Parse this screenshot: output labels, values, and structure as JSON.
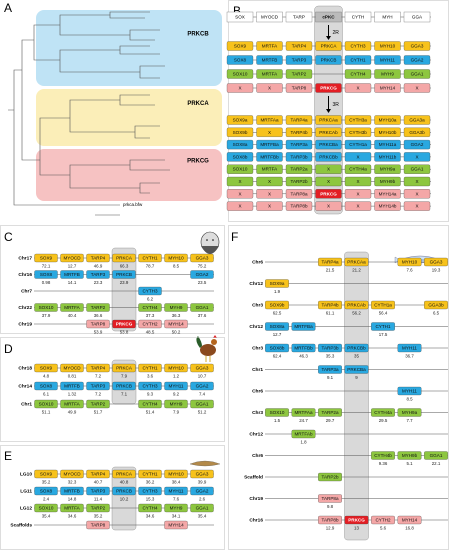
{
  "panels": {
    "A": {
      "letter": "A",
      "groups": [
        {
          "name": "PRKCB",
          "color": "#bfe3f5"
        },
        {
          "name": "PRKCA",
          "color": "#fbeeb8"
        },
        {
          "name": "PRKCG",
          "color": "#f6c2c2"
        }
      ],
      "outgroup": "prkca.bfw"
    },
    "B": {
      "letter": "B",
      "header": [
        "SOX",
        "MYOCD",
        "TARP",
        "cPKC",
        "CYTH",
        "MYH",
        "GGA"
      ],
      "arrows": [
        "2R",
        "3R"
      ],
      "rows2R": [
        {
          "color": "#f7c21b",
          "genes": [
            "SOX9",
            "MRTFA",
            "TARP4",
            "PRKCA",
            "CYTH3",
            "MYH10",
            "GGA3"
          ]
        },
        {
          "color": "#29a8e0",
          "genes": [
            "SOX8",
            "MRTFB",
            "TARP3",
            "PRKCB",
            "CYTH1",
            "MYH11",
            "GGA2"
          ]
        },
        {
          "color": "#8dc63f",
          "genes": [
            "SOX10",
            "MRTFA",
            "TARP2",
            null,
            "CYTH4",
            "MYH9",
            "GGA1"
          ]
        },
        {
          "color": "#f4a7a7",
          "genes": [
            "X",
            "X",
            "TARP8",
            {
              "name": "PRKCG",
              "color": "#e31e24"
            },
            "X",
            "MYH14",
            "X"
          ]
        }
      ],
      "rows3R": [
        {
          "color": "#f7c21b",
          "genes": [
            "SOX9a",
            "MRTFAa",
            "TARP4a",
            "PRKCAa",
            "CYTH3a",
            "MYH10a",
            "GGA3a"
          ]
        },
        {
          "color": "#f7c21b",
          "genes": [
            "SOX9b",
            "X",
            "TARP4b",
            "PRKCAb",
            "CYTH3b",
            "MYH10b",
            "GGA3b"
          ]
        },
        {
          "color": "#29a8e0",
          "genes": [
            "SOX8a",
            "MRTFBa",
            "TARP3a",
            "PRKCBa",
            "CYTH1a",
            "MYH11a",
            "GGA2"
          ]
        },
        {
          "color": "#29a8e0",
          "genes": [
            "SOX8b",
            "MRTFBb",
            "TARP3b",
            "PRKCBb",
            "X",
            "MYH11b",
            "X"
          ]
        },
        {
          "color": "#8dc63f",
          "genes": [
            "SOX10",
            "MRTFA",
            "TARP2a",
            "X",
            "CYTH4a",
            "MYH9a",
            "GGA1"
          ]
        },
        {
          "color": "#8dc63f",
          "genes": [
            "X",
            "X",
            "TARP2b",
            "X",
            "X",
            "MYH9b",
            "X"
          ]
        },
        {
          "color": "#f4a7a7",
          "genes": [
            "X",
            "X",
            "TARP8a",
            {
              "name": "PRKCG",
              "color": "#e31e24"
            },
            "X",
            "MYH14a",
            "X"
          ]
        },
        {
          "color": "#f4a7a7",
          "genes": [
            "X",
            "X",
            "TARP8b",
            "X",
            "X",
            "MYH14b",
            "X"
          ]
        }
      ]
    },
    "C": {
      "letter": "C",
      "rows": [
        {
          "label": "Chr17",
          "color": "#f7c21b",
          "genes": [
            "SOX9",
            "MYOCD",
            "TARP4",
            "PRKCA",
            "CYTH1",
            "MYH10",
            "GGA3"
          ],
          "positions": [
            72.1,
            12.7,
            46.9,
            66.3,
            78.7,
            8.5,
            75.2
          ]
        },
        {
          "label": "Chr16",
          "color": "#29a8e0",
          "genes": [
            "SOX8",
            "MRTFB",
            "TARP3",
            "PRKCB",
            null,
            null,
            "GGA2"
          ],
          "positions": [
            0.98,
            14.1,
            23.3,
            23.9,
            null,
            null,
            23.5
          ]
        },
        {
          "label": "Chr7",
          "color": "#29a8e0",
          "genes": [
            null,
            null,
            null,
            null,
            "CYTH3",
            null,
            null
          ],
          "positions": [
            null,
            null,
            null,
            null,
            6.2,
            null,
            null
          ]
        },
        {
          "label": "Chr22",
          "color": "#8dc63f",
          "genes": [
            "SOX10",
            "MRTFA",
            "TARP2",
            null,
            "CYTH4",
            "MYH9",
            "GGA1"
          ],
          "positions": [
            37.9,
            40.4,
            36.6,
            null,
            37.3,
            36.3,
            37.6
          ]
        },
        {
          "label": "Chr19",
          "color": "#f4a7a7",
          "genes": [
            null,
            null,
            "TARP8",
            {
              "name": "PRKCG",
              "color": "#e31e24"
            },
            "CYTH2",
            "MYH14",
            null
          ],
          "positions": [
            null,
            null,
            53.9,
            53.8,
            48.5,
            50.2,
            null
          ]
        }
      ]
    },
    "D": {
      "letter": "D",
      "rows": [
        {
          "label": "Chr18",
          "color": "#f7c21b",
          "genes": [
            "SOX9",
            "MYOCD",
            "TARP4",
            "PRKCA",
            "CYTH1",
            "MYH10",
            "GGA3"
          ],
          "positions": [
            4.8,
            0.81,
            7.2,
            7.9,
            3.6,
            1.2,
            10.7
          ]
        },
        {
          "label": "Chr14",
          "color": "#29a8e0",
          "genes": [
            "SOX8",
            "MRTFB",
            "TARP3",
            "PRKCB",
            "CYTH3",
            "MYH11",
            "GGA2"
          ],
          "positions": [
            6.1,
            1.32,
            7.2,
            7.1,
            9.3,
            9.2,
            7.4
          ]
        },
        {
          "label": "Chr1",
          "color": "#8dc63f",
          "genes": [
            "SOX10",
            "MRTFA",
            "TARP2",
            null,
            "CYTH4",
            "MYH9",
            "GGA1"
          ],
          "positions": [
            51.1,
            49.9,
            51.7,
            null,
            51.4,
            7.9,
            51.2
          ]
        }
      ]
    },
    "E": {
      "letter": "E",
      "rows": [
        {
          "label": "LG10",
          "color": "#f7c21b",
          "genes": [
            "SOX9",
            "MYOCD",
            "TARP4",
            "PRKCA",
            "CYTH1",
            "MYH10",
            "GGA3"
          ],
          "positions": [
            35.2,
            32.3,
            40.7,
            40.8,
            36.2,
            38.4,
            39.9
          ]
        },
        {
          "label": "LG11",
          "color": "#29a8e0",
          "genes": [
            "SOX8",
            "MRTFB",
            "TARP3",
            "PRKCB",
            "CYTH3",
            "MYH11",
            "GGA2"
          ],
          "positions": [
            2.4,
            14.8,
            11.4,
            10.2,
            15.3,
            7.6,
            2.6
          ]
        },
        {
          "label": "LG12",
          "color": "#8dc63f",
          "genes": [
            "SOX10",
            "MRTFA",
            "TARP2",
            null,
            "CYTH4",
            "MYH9",
            "GGA1"
          ],
          "positions": [
            35.4,
            34.6,
            35.2,
            null,
            34.6,
            34.1,
            35.4
          ]
        },
        {
          "label": "Scaffolds",
          "color": "#f4a7a7",
          "genes": [
            null,
            null,
            "TARP8",
            null,
            null,
            "MYH14",
            null
          ]
        }
      ]
    },
    "F": {
      "letter": "F",
      "rows": [
        {
          "label": "Chr6",
          "color": "#f7c21b",
          "genes": [
            null,
            null,
            "TARP4a",
            "PRKCAa",
            null,
            "MYH10",
            "GGA3"
          ],
          "positions": [
            null,
            null,
            21.5,
            21.2,
            null,
            7.6,
            19.3
          ]
        },
        {
          "label": "Chr12",
          "color": "#f7c21b",
          "genes": [
            "SOX9a",
            null,
            null,
            null,
            null,
            null,
            null
          ],
          "positions": [
            1.9,
            null,
            null,
            null,
            null,
            null,
            null
          ]
        },
        {
          "label": "Chr3",
          "color": "#f7c21b",
          "genes": [
            "SOX9b",
            null,
            "TARP4b",
            "PRKCAb",
            "CYTH1a",
            null,
            "GGA3b"
          ],
          "positions": [
            62.5,
            null,
            61.1,
            56.2,
            56.4,
            null,
            6.5
          ]
        },
        {
          "label": "Chr12",
          "color": "#29a8e0",
          "genes": [
            "SOX8a",
            "MRTFBa",
            null,
            null,
            "CYTH1",
            null,
            null
          ],
          "positions": [
            12.7,
            null,
            null,
            null,
            17.5,
            null,
            null
          ]
        },
        {
          "label": "Chr3",
          "color": "#29a8e0",
          "genes": [
            "SOX8b",
            "MRTFBb",
            "TARP3b",
            "PRKCBb",
            null,
            "MYH11",
            null
          ],
          "positions": [
            62.4,
            46.3,
            35.3,
            35,
            null,
            36.7,
            null
          ]
        },
        {
          "label": "Chr1",
          "color": "#29a8e0",
          "genes": [
            null,
            null,
            "TARP3a",
            "PRKCBa",
            null,
            null,
            null
          ],
          "positions": [
            null,
            null,
            9.1,
            9,
            null,
            null,
            null
          ]
        },
        {
          "label": "Chr6",
          "color": "#29a8e0",
          "genes": [
            null,
            null,
            null,
            null,
            null,
            "MYH11",
            null
          ],
          "positions": [
            null,
            null,
            null,
            null,
            null,
            8.5,
            null
          ]
        },
        {
          "label": "Chr3",
          "color": "#8dc63f",
          "genes": [
            "SOX10",
            "MRTFAa",
            "TARP2a",
            null,
            "CYTH4a",
            "MYH9a",
            null
          ],
          "positions": [
            1.5,
            24.7,
            29.7,
            null,
            29.5,
            7.7,
            null
          ]
        },
        {
          "label": "Chr12",
          "color": "#8dc63f",
          "genes": [
            null,
            "MRTFAb",
            null,
            null,
            null,
            null,
            null
          ],
          "positions": [
            null,
            1.8,
            null,
            null,
            null,
            null,
            null
          ]
        },
        {
          "label": "Chr6",
          "color": "#8dc63f",
          "genes": [
            null,
            null,
            null,
            null,
            "CYTH4b",
            "MYH9b",
            "GGA1"
          ],
          "positions": [
            null,
            null,
            null,
            null,
            9.36,
            5.1,
            22.1
          ]
        },
        {
          "label": "Scaffold",
          "color": "#8dc63f",
          "genes": [
            null,
            null,
            "TARP2b",
            null,
            null,
            null,
            null
          ]
        },
        {
          "label": "Chr19",
          "color": "#f4a7a7",
          "genes": [
            null,
            null,
            "TARP8a",
            null,
            null,
            null,
            null
          ],
          "positions": [
            null,
            null,
            9.8,
            null,
            null,
            null,
            null
          ]
        },
        {
          "label": "Chr16",
          "color": "#f4a7a7",
          "genes": [
            null,
            null,
            "TARP8b",
            {
              "name": "PRKCG",
              "color": "#e31e24"
            },
            "CYTH2",
            "MYH14",
            null
          ],
          "positions": [
            null,
            null,
            12.9,
            13,
            5.6,
            16.8,
            null
          ]
        }
      ]
    }
  }
}
